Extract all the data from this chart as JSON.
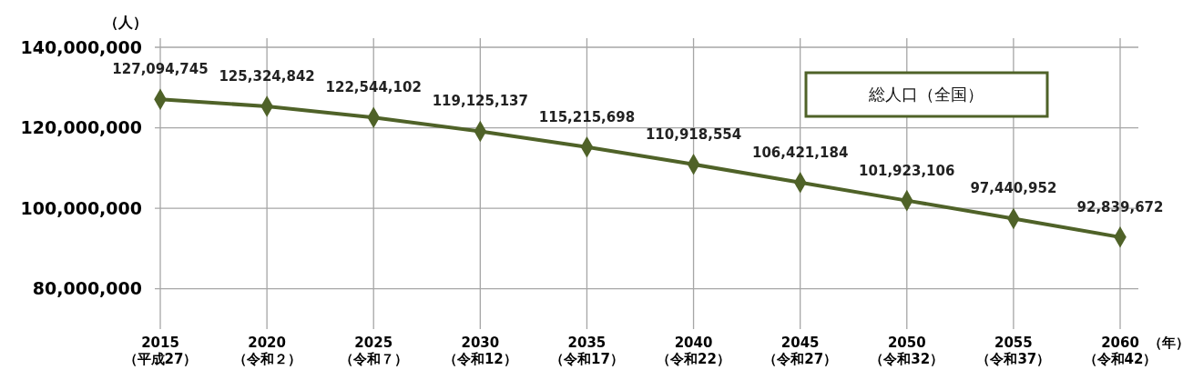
{
  "chart_data": {
    "type": "line",
    "ylabel": "（人）",
    "xlabel": "（年）",
    "categories": [
      "2015\n（平成27）",
      "2020\n（令和２）",
      "2025\n（令和７）",
      "2030\n（令和12）",
      "2035\n（令和17）",
      "2040\n（令和22）",
      "2045\n（令和27）",
      "2050\n（令和32）",
      "2055\n（令和37）",
      "2060\n（令和42）"
    ],
    "series": [
      {
        "name": "総人口（全国）",
        "color": "#4f6228",
        "values": [
          127094745,
          125324842,
          122544102,
          119125137,
          115215698,
          110918554,
          106421184,
          101923106,
          97440952,
          92839672
        ],
        "value_labels": [
          "127,094,745",
          "125,324,842",
          "122,544,102",
          "119,125,137",
          "115,215,698",
          "110,918,554",
          "106,421,184",
          "101,923,106",
          "97,440,952",
          "92,839,672"
        ]
      }
    ],
    "ylim": [
      70000000,
      140000000
    ],
    "yticks": [
      {
        "value": 80000000,
        "label": "80,000,000"
      },
      {
        "value": 100000000,
        "label": "100,000,000"
      },
      {
        "value": 120000000,
        "label": "120,000,000"
      },
      {
        "value": 140000000,
        "label": "140,000,000"
      }
    ],
    "grid": true,
    "legend": "top right",
    "marker": "diamond",
    "line_style": "solid"
  }
}
